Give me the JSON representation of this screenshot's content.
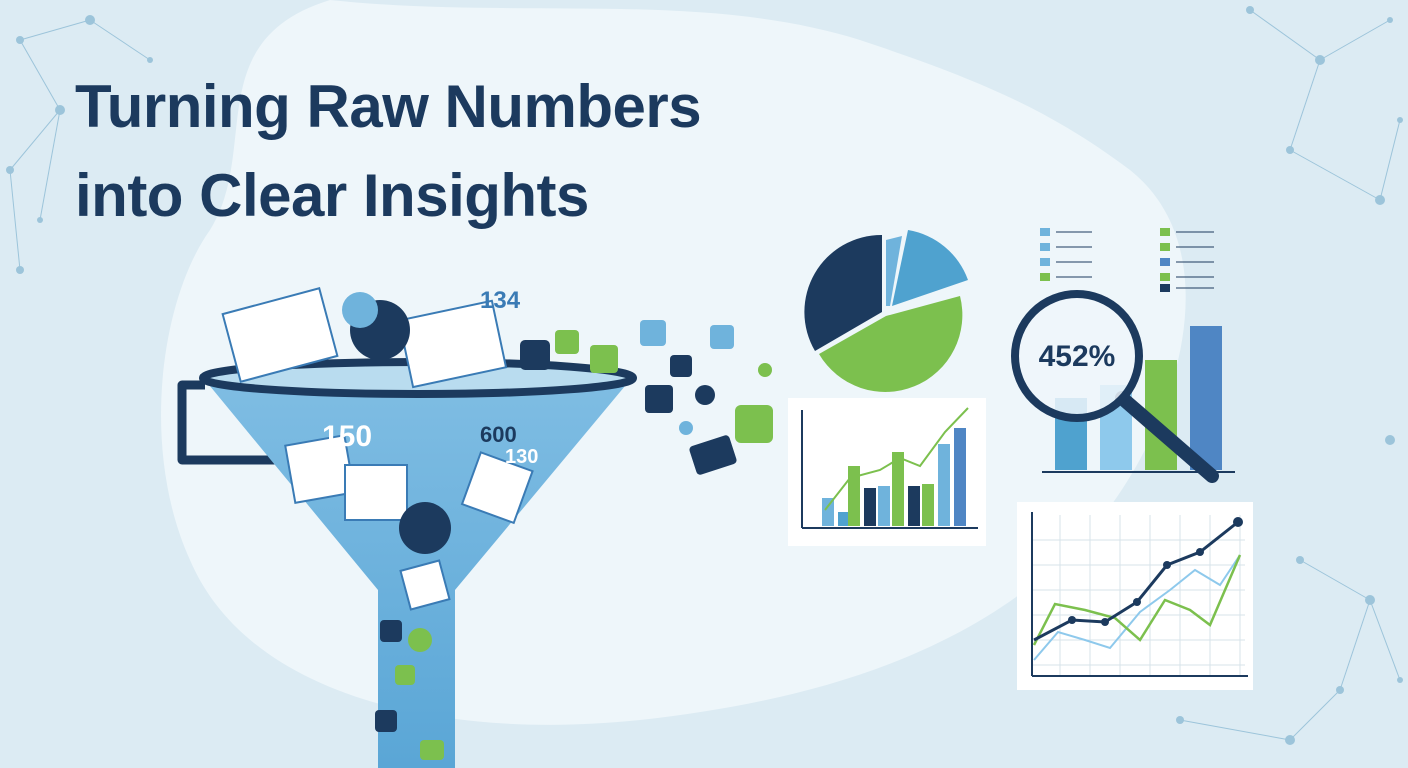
{
  "header": {
    "title_lines": [
      "Turning Raw Numbers",
      "into Clear Insights"
    ]
  },
  "funnel": {
    "labels": [
      "134",
      "150",
      "600",
      "130"
    ]
  },
  "magnifier": {
    "label": "452%"
  }
}
